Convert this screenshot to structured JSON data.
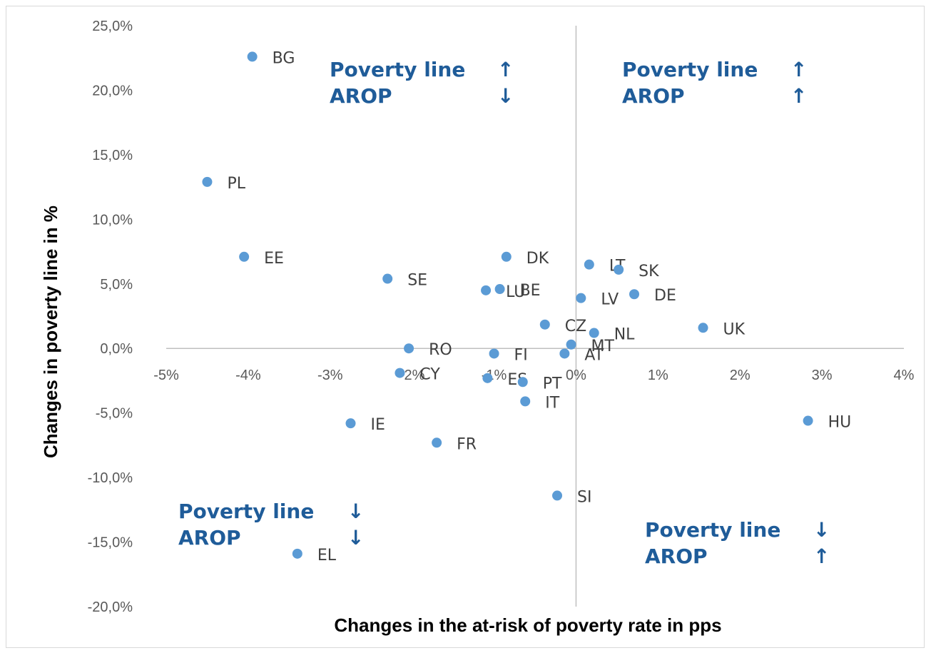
{
  "chart_data": {
    "type": "scatter",
    "xlabel": "Changes in the at-risk of poverty rate in pps",
    "ylabel": "Changes in poverty line in %",
    "xlim": [
      -5,
      4
    ],
    "ylim": [
      -20,
      25
    ],
    "x_ticks": [
      {
        "value": -5,
        "label": "-5%"
      },
      {
        "value": -4,
        "label": "-4%"
      },
      {
        "value": -3,
        "label": "-3%"
      },
      {
        "value": -2,
        "label": "-2%"
      },
      {
        "value": -1,
        "label": "-1%"
      },
      {
        "value": 0,
        "label": "0%"
      },
      {
        "value": 1,
        "label": "1%"
      },
      {
        "value": 2,
        "label": "2%"
      },
      {
        "value": 3,
        "label": "3%"
      },
      {
        "value": 4,
        "label": "4%"
      }
    ],
    "y_ticks": [
      {
        "value": 25,
        "label": "25,0%"
      },
      {
        "value": 20,
        "label": "20,0%"
      },
      {
        "value": 15,
        "label": "15,0%"
      },
      {
        "value": 10,
        "label": "10,0%"
      },
      {
        "value": 5,
        "label": "5,0%"
      },
      {
        "value": 0,
        "label": "0,0%"
      },
      {
        "value": -5,
        "label": "-5,0%"
      },
      {
        "value": -10,
        "label": "-10,0%"
      },
      {
        "value": -15,
        "label": "-15,0%"
      },
      {
        "value": -20,
        "label": "-20,0%"
      }
    ],
    "grid": false,
    "marker_color": "#5b9bd5",
    "points": [
      {
        "label": "BG",
        "x": -3.95,
        "y": 22.6
      },
      {
        "label": "PL",
        "x": -4.5,
        "y": 12.9
      },
      {
        "label": "EE",
        "x": -4.05,
        "y": 7.1
      },
      {
        "label": "SE",
        "x": -2.3,
        "y": 5.4
      },
      {
        "label": "DK",
        "x": -0.85,
        "y": 7.1
      },
      {
        "label": "LU",
        "x": -1.1,
        "y": 4.5
      },
      {
        "label": "BE",
        "x": -0.93,
        "y": 4.6
      },
      {
        "label": "LT",
        "x": 0.16,
        "y": 6.5
      },
      {
        "label": "SK",
        "x": 0.52,
        "y": 6.1
      },
      {
        "label": "LV",
        "x": 0.06,
        "y": 3.9
      },
      {
        "label": "DE",
        "x": 0.71,
        "y": 4.2
      },
      {
        "label": "CZ",
        "x": -0.38,
        "y": 1.85
      },
      {
        "label": "NL",
        "x": 0.22,
        "y": 1.2
      },
      {
        "label": "UK",
        "x": 1.55,
        "y": 1.6
      },
      {
        "label": "MT",
        "x": -0.06,
        "y": 0.3
      },
      {
        "label": "AT",
        "x": -0.14,
        "y": -0.4
      },
      {
        "label": "RO",
        "x": -2.04,
        "y": 0.0
      },
      {
        "label": "FI",
        "x": -1.0,
        "y": -0.4
      },
      {
        "label": "CY",
        "x": -2.15,
        "y": -1.9
      },
      {
        "label": "ES",
        "x": -1.08,
        "y": -2.3
      },
      {
        "label": "PT",
        "x": -0.65,
        "y": -2.6
      },
      {
        "label": "IT",
        "x": -0.62,
        "y": -4.1
      },
      {
        "label": "IE",
        "x": -2.75,
        "y": -5.8
      },
      {
        "label": "FR",
        "x": -1.7,
        "y": -7.3
      },
      {
        "label": "HU",
        "x": 2.83,
        "y": -5.6
      },
      {
        "label": "SI",
        "x": -0.23,
        "y": -11.4
      },
      {
        "label": "EL",
        "x": -3.4,
        "y": -15.9
      }
    ]
  },
  "quadrant_labels": {
    "top_left": {
      "line1": "Poverty line",
      "arrow1": "↑",
      "line2": "AROP",
      "arrow2": "↓"
    },
    "top_right": {
      "line1": "Poverty line",
      "arrow1": "↑",
      "line2": "AROP",
      "arrow2": "↑"
    },
    "bottom_left": {
      "line1": "Poverty line",
      "arrow1": "↓",
      "line2": "AROP",
      "arrow2": "↓"
    },
    "bottom_right": {
      "line1": "Poverty line",
      "arrow1": "↓",
      "line2": "AROP",
      "arrow2": "↑"
    }
  }
}
